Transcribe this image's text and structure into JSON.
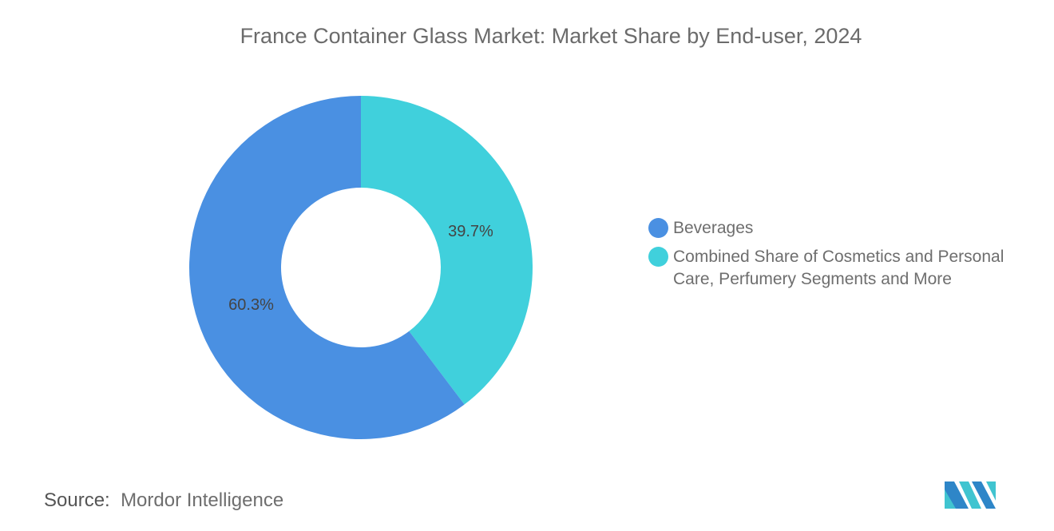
{
  "chart_data": {
    "type": "pie",
    "variant": "donut",
    "title": "France Container Glass Market: Market Share by End-user, 2024",
    "categories": [
      "Combined Share of Cosmetics and Personal Care, Perfumery Segments and More",
      "Beverages"
    ],
    "values": [
      39.7,
      60.3
    ],
    "data_labels": [
      "39.7%",
      "60.3%"
    ],
    "colors": [
      "#40D0DC",
      "#4A90E2"
    ],
    "legend_placement": "right",
    "legend": [
      {
        "label": "Beverages",
        "color": "#4A90E2"
      },
      {
        "label": "Combined Share of Cosmetics and Personal Care, Perfumery Segments and More",
        "color": "#40D0DC"
      }
    ]
  },
  "source": {
    "label": "Source:",
    "value": "Mordor Intelligence"
  },
  "logo": {
    "name": "mordor-intelligence-logo",
    "colors": [
      "#2E86C8",
      "#40C4D0"
    ]
  }
}
